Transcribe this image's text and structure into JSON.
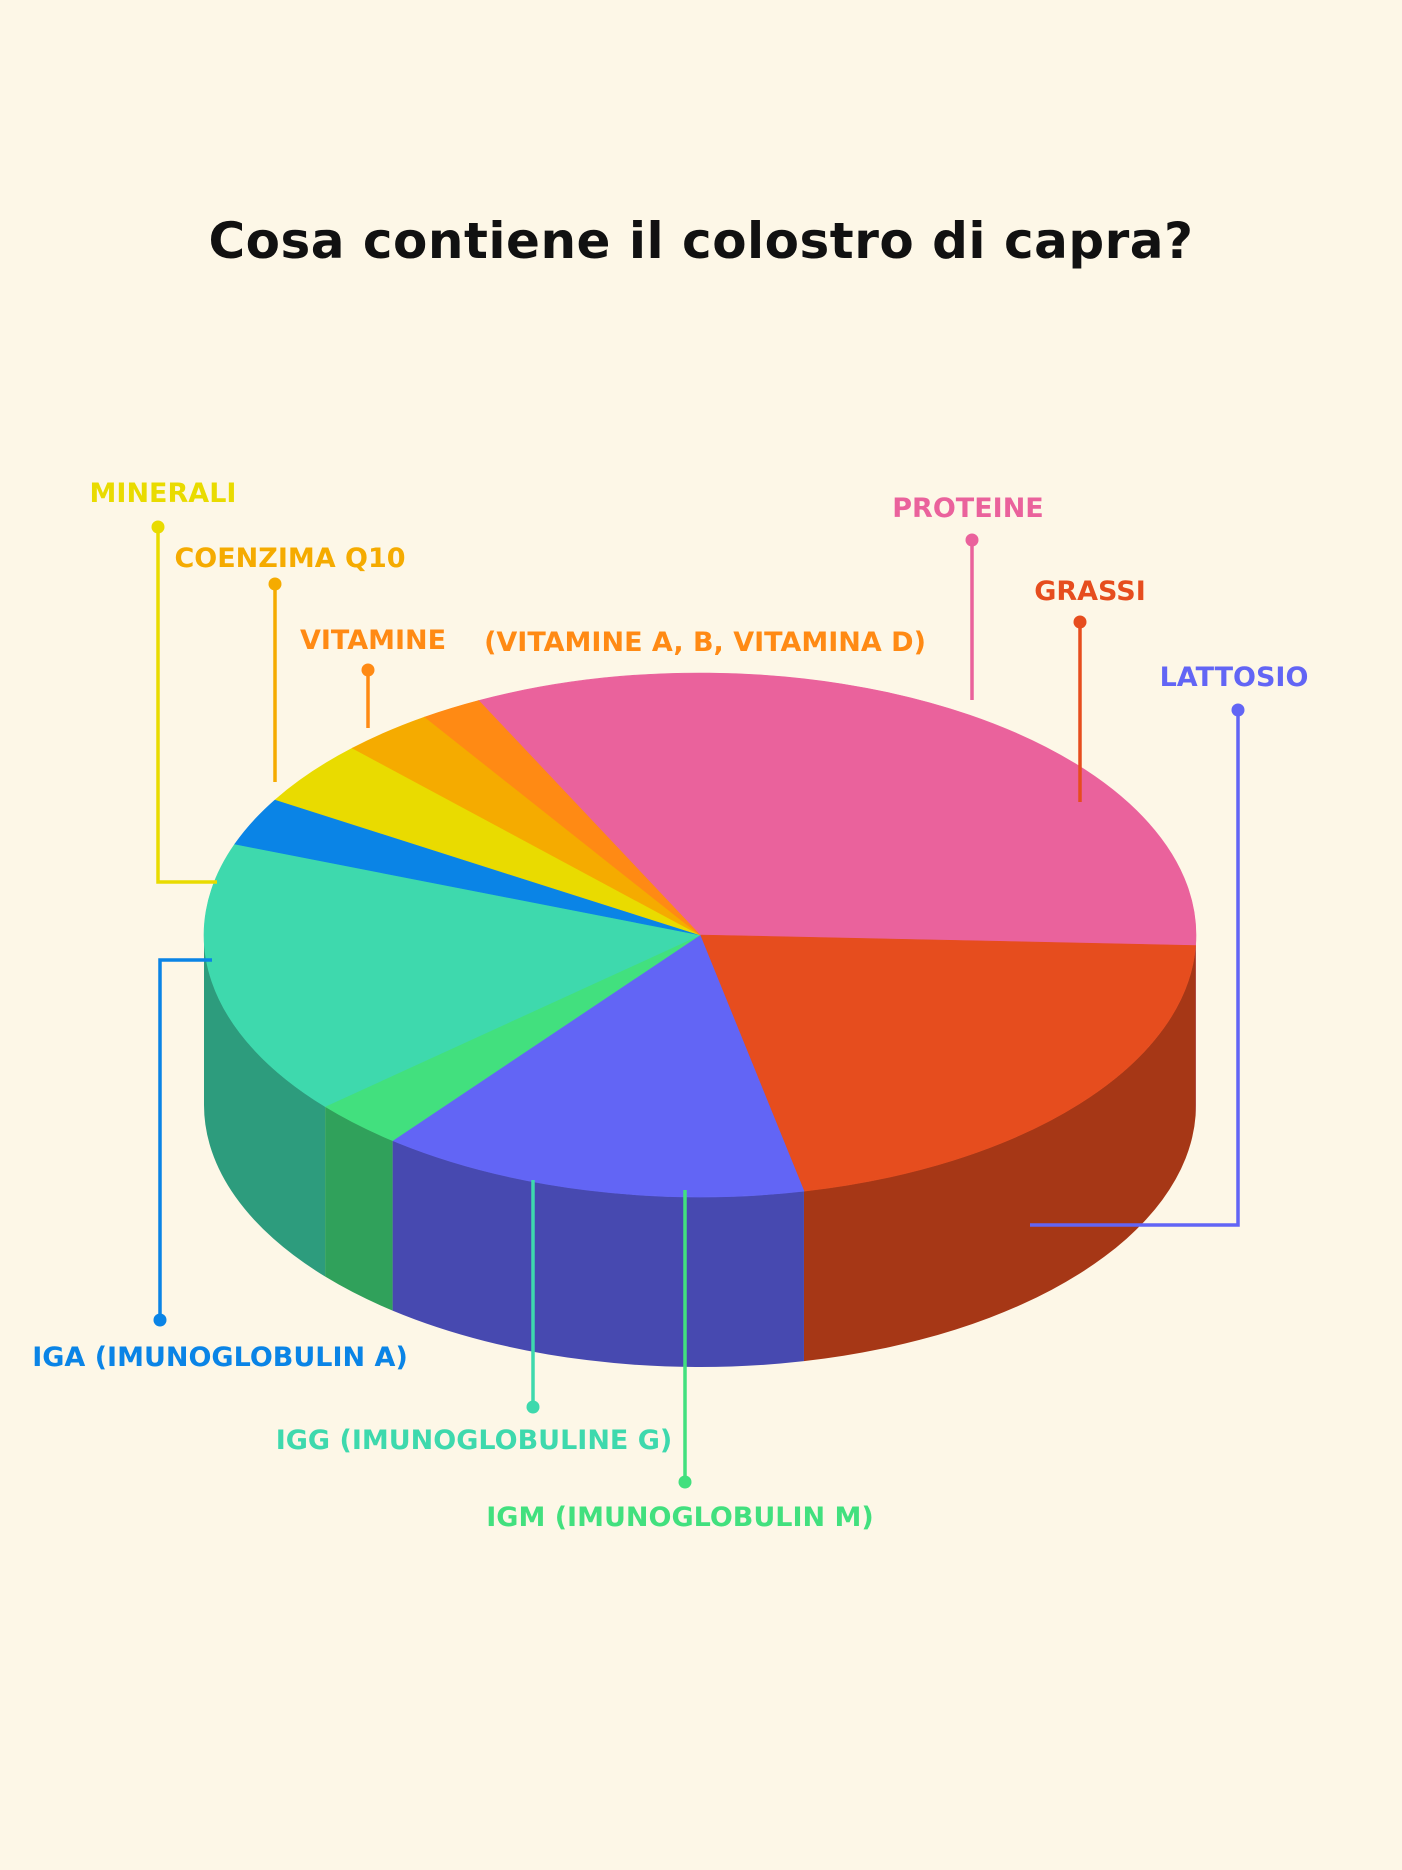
{
  "title": "Cosa contiene il colostro di capra?",
  "chart_data": {
    "type": "pie",
    "style": "3d",
    "title": "Cosa contiene il colostro di capra?",
    "slices": [
      {
        "name": "PROTEINE",
        "value": 33,
        "color": "#ea629c"
      },
      {
        "name": "GRASSI",
        "value": 21,
        "color": "#e64d1e"
      },
      {
        "name": "LATTOSIO",
        "value": 14,
        "color": "#6265f5"
      },
      {
        "name": "IGM (IMUNOGLOBULIN M)",
        "value": 3,
        "color": "#42e07e"
      },
      {
        "name": "IGG (IMUNOGLOBULINE G)",
        "value": 17,
        "color": "#3ed9ad"
      },
      {
        "name": "IGA (IMUNOGLOBULIN A)",
        "value": 3,
        "color": "#0a84e6"
      },
      {
        "name": "MINERALI",
        "value": 4,
        "color": "#e9db00"
      },
      {
        "name": "COENZIMA Q10",
        "value": 3,
        "color": "#f5ab00"
      },
      {
        "name": "VITAMINE",
        "value": 2,
        "color": "#ff8a14"
      }
    ],
    "annotations": [
      {
        "text": "(VITAMINE A, B, VITAMINA D)",
        "color": "#ff8a14"
      }
    ]
  }
}
